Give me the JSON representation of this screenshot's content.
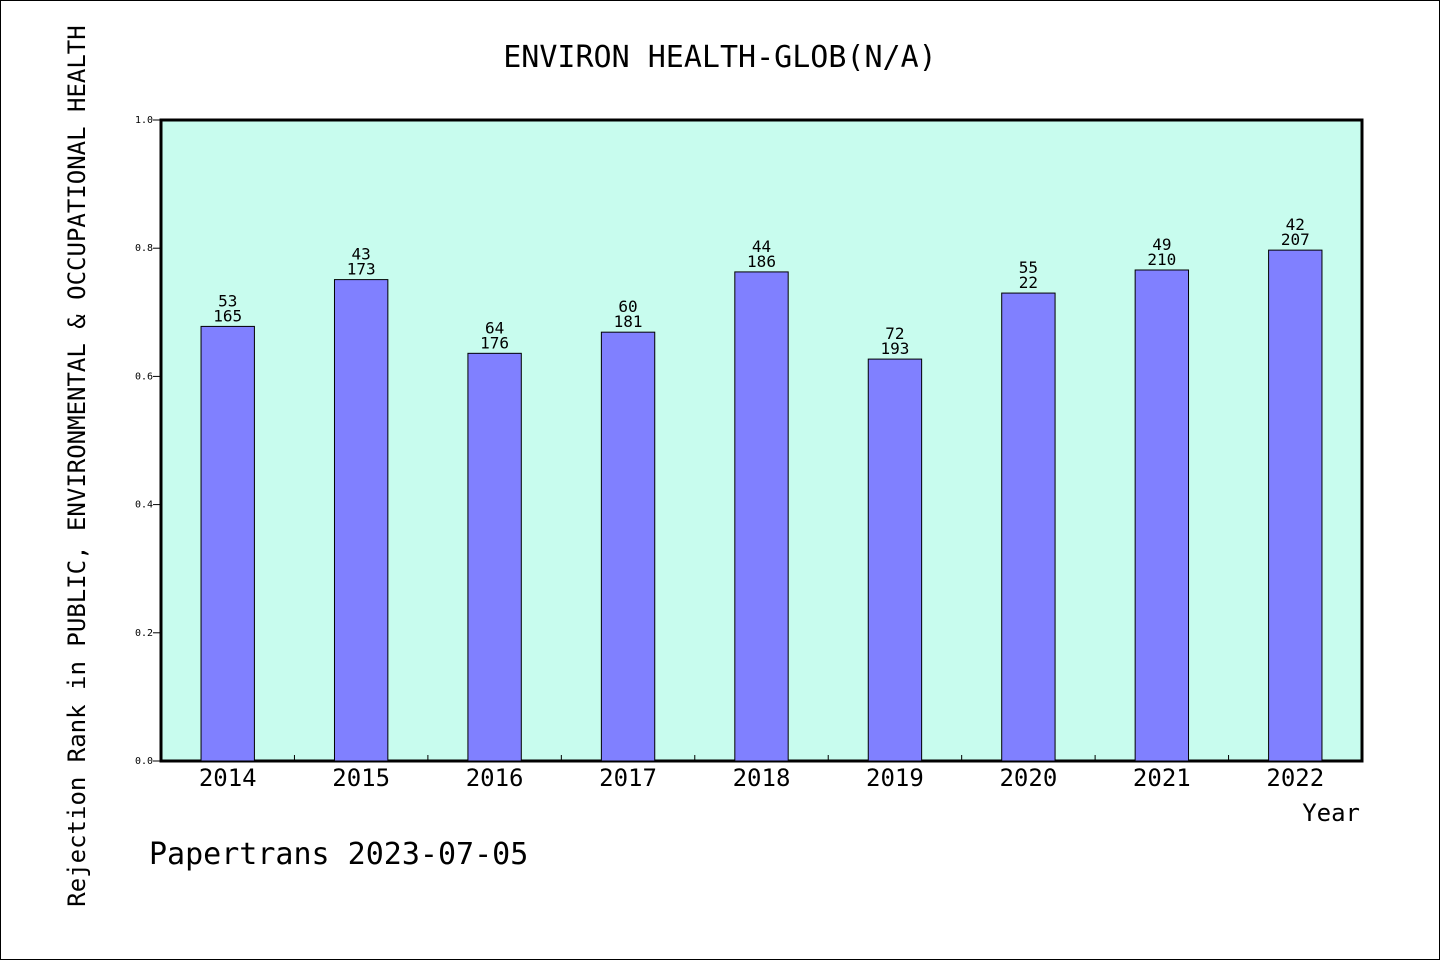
{
  "chart_data": {
    "type": "bar",
    "title": "ENVIRON HEALTH-GLOB(N/A)",
    "xlabel": "Year",
    "ylabel": "Rejection Rank in PUBLIC, ENVIRONMENTAL & OCCUPATIONAL HEALTH",
    "ylim": [
      0.0,
      1.0
    ],
    "yticks": [
      "0.0",
      "0.2",
      "0.4",
      "0.6",
      "0.8",
      "1.0"
    ],
    "categories": [
      "2014",
      "2015",
      "2016",
      "2017",
      "2018",
      "2019",
      "2020",
      "2021",
      "2022"
    ],
    "values": [
      0.678,
      0.751,
      0.636,
      0.669,
      0.763,
      0.627,
      0.73,
      0.766,
      0.797
    ],
    "label_top": [
      "53",
      "43",
      "64",
      "60",
      "44",
      "72",
      "55",
      "49",
      "42"
    ],
    "label_bottom": [
      "165",
      "173",
      "176",
      "181",
      "186",
      "193",
      "22",
      "210",
      "207"
    ],
    "plot_background": "#c8fcee",
    "bar_color": "#8080ff",
    "grid": false
  },
  "footer": {
    "text": "Papertrans 2023-07-05"
  }
}
